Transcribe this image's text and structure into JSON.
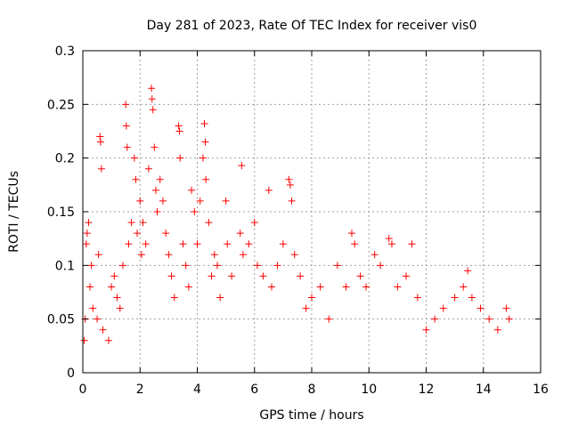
{
  "chart_data": {
    "type": "scatter",
    "title": "Day 281 of 2023, Rate Of TEC Index for receiver vis0",
    "xlabel": "GPS time / hours",
    "ylabel": "ROTI / TECUs",
    "xlim": [
      0,
      16
    ],
    "ylim": [
      0,
      0.3
    ],
    "x_ticks": [
      0,
      2,
      4,
      6,
      8,
      10,
      12,
      14,
      16
    ],
    "y_ticks": [
      0,
      0.05,
      0.1,
      0.15,
      0.2,
      0.25,
      0.3
    ],
    "x_tick_labels": [
      "0",
      "2",
      "4",
      "6",
      "8",
      "10",
      "12",
      "14",
      "16"
    ],
    "y_tick_labels": [
      "0",
      "0.05",
      "0.1",
      "0.15",
      "0.2",
      "0.25",
      "0.3"
    ],
    "grid": true,
    "marker": "plus",
    "marker_color": "#ff0000",
    "series": [
      {
        "points": [
          [
            0.05,
            0.03
          ],
          [
            0.08,
            0.05
          ],
          [
            0.12,
            0.12
          ],
          [
            0.15,
            0.13
          ],
          [
            0.2,
            0.14
          ],
          [
            0.25,
            0.08
          ],
          [
            0.3,
            0.1
          ],
          [
            0.35,
            0.06
          ],
          [
            0.5,
            0.05
          ],
          [
            0.55,
            0.11
          ],
          [
            0.6,
            0.22
          ],
          [
            0.62,
            0.215
          ],
          [
            0.65,
            0.19
          ],
          [
            0.7,
            0.04
          ],
          [
            0.9,
            0.03
          ],
          [
            1.0,
            0.08
          ],
          [
            1.1,
            0.09
          ],
          [
            1.2,
            0.07
          ],
          [
            1.3,
            0.06
          ],
          [
            1.4,
            0.1
          ],
          [
            1.5,
            0.25
          ],
          [
            1.52,
            0.23
          ],
          [
            1.55,
            0.21
          ],
          [
            1.6,
            0.12
          ],
          [
            1.7,
            0.14
          ],
          [
            1.8,
            0.2
          ],
          [
            1.85,
            0.18
          ],
          [
            1.9,
            0.13
          ],
          [
            2.0,
            0.16
          ],
          [
            2.05,
            0.11
          ],
          [
            2.1,
            0.14
          ],
          [
            2.2,
            0.12
          ],
          [
            2.3,
            0.19
          ],
          [
            2.4,
            0.265
          ],
          [
            2.42,
            0.255
          ],
          [
            2.45,
            0.245
          ],
          [
            2.5,
            0.21
          ],
          [
            2.55,
            0.17
          ],
          [
            2.6,
            0.15
          ],
          [
            2.7,
            0.18
          ],
          [
            2.8,
            0.16
          ],
          [
            2.9,
            0.13
          ],
          [
            3.0,
            0.11
          ],
          [
            3.1,
            0.09
          ],
          [
            3.2,
            0.07
          ],
          [
            3.35,
            0.23
          ],
          [
            3.38,
            0.225
          ],
          [
            3.4,
            0.2
          ],
          [
            3.5,
            0.12
          ],
          [
            3.6,
            0.1
          ],
          [
            3.7,
            0.08
          ],
          [
            3.8,
            0.17
          ],
          [
            3.9,
            0.15
          ],
          [
            4.0,
            0.12
          ],
          [
            4.1,
            0.16
          ],
          [
            4.2,
            0.2
          ],
          [
            4.25,
            0.232
          ],
          [
            4.28,
            0.215
          ],
          [
            4.3,
            0.18
          ],
          [
            4.4,
            0.14
          ],
          [
            4.5,
            0.09
          ],
          [
            4.6,
            0.11
          ],
          [
            4.7,
            0.1
          ],
          [
            4.8,
            0.07
          ],
          [
            5.0,
            0.16
          ],
          [
            5.05,
            0.12
          ],
          [
            5.2,
            0.09
          ],
          [
            5.5,
            0.13
          ],
          [
            5.55,
            0.193
          ],
          [
            5.6,
            0.11
          ],
          [
            5.8,
            0.12
          ],
          [
            6.0,
            0.14
          ],
          [
            6.1,
            0.1
          ],
          [
            6.3,
            0.09
          ],
          [
            6.5,
            0.17
          ],
          [
            6.6,
            0.08
          ],
          [
            6.8,
            0.1
          ],
          [
            7.0,
            0.12
          ],
          [
            7.2,
            0.18
          ],
          [
            7.25,
            0.175
          ],
          [
            7.3,
            0.16
          ],
          [
            7.4,
            0.11
          ],
          [
            7.6,
            0.09
          ],
          [
            7.8,
            0.06
          ],
          [
            8.0,
            0.07
          ],
          [
            8.3,
            0.08
          ],
          [
            8.6,
            0.05
          ],
          [
            8.9,
            0.1
          ],
          [
            9.2,
            0.08
          ],
          [
            9.4,
            0.13
          ],
          [
            9.5,
            0.12
          ],
          [
            9.7,
            0.09
          ],
          [
            9.9,
            0.08
          ],
          [
            10.2,
            0.11
          ],
          [
            10.4,
            0.1
          ],
          [
            10.7,
            0.125
          ],
          [
            10.8,
            0.12
          ],
          [
            11.0,
            0.08
          ],
          [
            11.3,
            0.09
          ],
          [
            11.5,
            0.12
          ],
          [
            11.7,
            0.07
          ],
          [
            12.0,
            0.04
          ],
          [
            12.3,
            0.05
          ],
          [
            12.6,
            0.06
          ],
          [
            13.0,
            0.07
          ],
          [
            13.3,
            0.08
          ],
          [
            13.45,
            0.095
          ],
          [
            13.6,
            0.07
          ],
          [
            13.9,
            0.06
          ],
          [
            14.2,
            0.05
          ],
          [
            14.5,
            0.04
          ],
          [
            14.8,
            0.06
          ],
          [
            14.9,
            0.05
          ]
        ]
      }
    ]
  }
}
